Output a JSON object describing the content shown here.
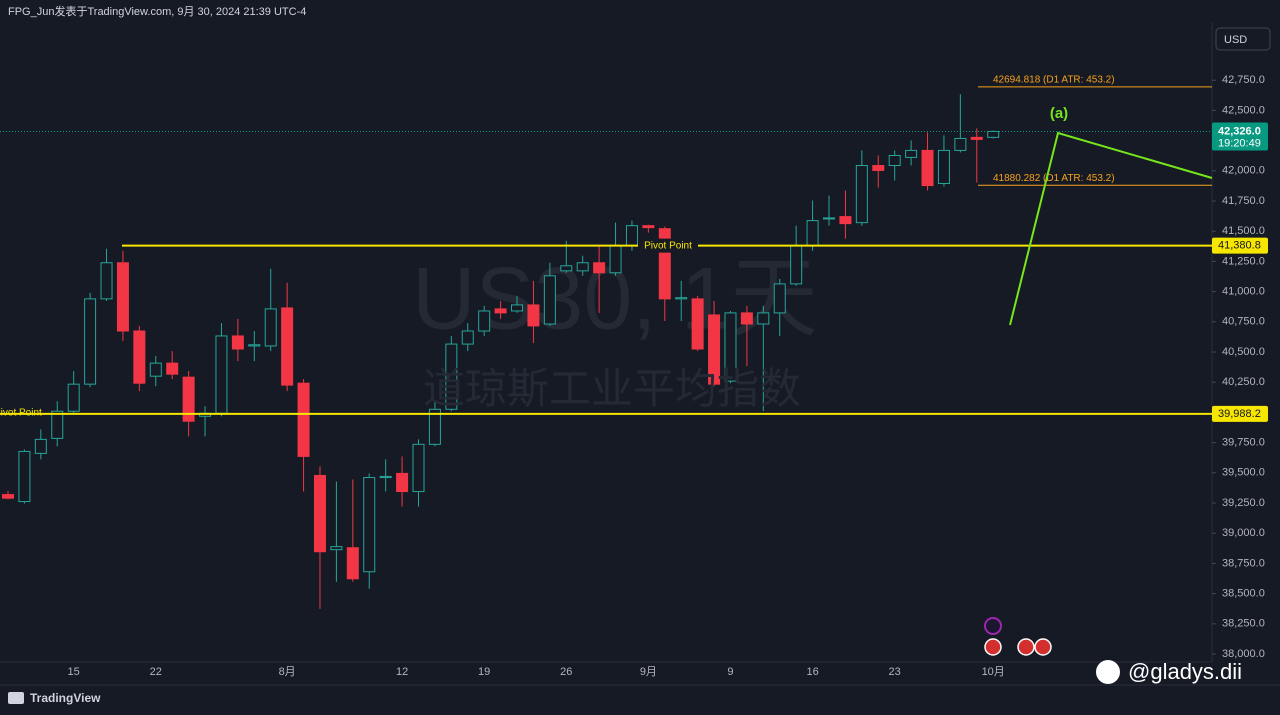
{
  "header": "FPG_Jun发表于TradingView.com, 9月 30, 2024 21:39 UTC-4",
  "currency": "USD",
  "logo": "TradingView",
  "credit": "@gladys.dii",
  "chart_data": {
    "type": "candlestick",
    "watermark": [
      "US30, 1天",
      "道琼斯工业平均指数"
    ],
    "categories": [
      null,
      null,
      null,
      null,
      "15",
      null,
      null,
      null,
      null,
      "22",
      null,
      null,
      null,
      null,
      null,
      null,
      null,
      "8月",
      null,
      null,
      null,
      null,
      null,
      null,
      "12",
      null,
      null,
      null,
      null,
      "19",
      null,
      null,
      null,
      null,
      "26",
      null,
      null,
      null,
      null,
      "9月",
      null,
      null,
      null,
      null,
      "9",
      null,
      null,
      null,
      null,
      "16",
      null,
      null,
      null,
      null,
      "23",
      null,
      null,
      null,
      null,
      null,
      "10月"
    ],
    "open": [
      39320,
      39262,
      39661,
      39785,
      40010,
      40234,
      40940,
      41239,
      40674,
      40300,
      40408,
      40292,
      39968,
      39993,
      40633,
      40550,
      40550,
      40865,
      40242,
      39478,
      38864,
      38880,
      38681,
      39461,
      39495,
      39345,
      39736,
      40026,
      40566,
      40674,
      40857,
      40840,
      40890,
      40732,
      41172,
      41172,
      41239,
      41156,
      41380,
      41546,
      41521,
      40940,
      40940,
      40807,
      40259,
      40824,
      40732,
      40824,
      41064,
      41380,
      41604,
      41621,
      41571,
      42044,
      42044,
      42111,
      42169,
      41895,
      42169,
      42277,
      42277
    ],
    "high": [
      39350,
      39694,
      39860,
      40093,
      40342,
      40990,
      41355,
      41338,
      40716,
      40466,
      40508,
      40342,
      40051,
      40740,
      40774,
      40674,
      41189,
      41073,
      40276,
      39553,
      39428,
      39445,
      39495,
      39611,
      39636,
      39777,
      40093,
      40633,
      40740,
      40882,
      40923,
      40965,
      41089,
      41239,
      41421,
      41297,
      41380,
      41571,
      41588,
      41554,
      41538,
      41089,
      40965,
      40923,
      40840,
      40882,
      40882,
      41106,
      41546,
      41754,
      41795,
      41837,
      42169,
      42127,
      42169,
      42252,
      42318,
      42293,
      42634,
      42352,
      42335
    ],
    "low": [
      39280,
      39246,
      39611,
      39719,
      39993,
      40209,
      40923,
      40591,
      40176,
      40217,
      40276,
      39802,
      39802,
      39968,
      40425,
      40425,
      40508,
      40176,
      39345,
      38374,
      38598,
      38598,
      38540,
      39345,
      39221,
      39221,
      39719,
      40010,
      40508,
      40633,
      40774,
      40824,
      40574,
      40716,
      41156,
      41131,
      40824,
      41131,
      41338,
      41488,
      40757,
      40757,
      40508,
      40217,
      40242,
      40383,
      40010,
      40633,
      41048,
      41338,
      41546,
      41438,
      41546,
      41861,
      41920,
      42044,
      41837,
      41870,
      42152,
      41903,
      42268
    ],
    "close": [
      39290,
      39677,
      39777,
      40010,
      40234,
      40940,
      41239,
      40674,
      40242,
      40408,
      40317,
      39927,
      39993,
      40633,
      40525,
      40560,
      40857,
      40226,
      39636,
      38847,
      38889,
      38623,
      39461,
      39470,
      39345,
      39736,
      40026,
      40566,
      40674,
      40840,
      40824,
      40890,
      40716,
      41131,
      41214,
      41239,
      41156,
      41380,
      41546,
      41530,
      40940,
      40950,
      40525,
      40234,
      40824,
      40732,
      40824,
      41064,
      41380,
      41588,
      41610,
      41563,
      42044,
      42003,
      42127,
      42169,
      41878,
      42169,
      42268,
      42260,
      42326
    ],
    "up_color": "#26a69a",
    "down_color": "#f23645",
    "ylim": [
      37934,
      43232
    ],
    "yticks": [
      {
        "value": 38000,
        "label": "38,000.0"
      },
      {
        "value": 38250,
        "label": "38,250.0"
      },
      {
        "value": 38500,
        "label": "38,500.0"
      },
      {
        "value": 38750,
        "label": "38,750.0"
      },
      {
        "value": 39000,
        "label": "39,000.0"
      },
      {
        "value": 39250,
        "label": "39,250.0"
      },
      {
        "value": 39500,
        "label": "39,500.0"
      },
      {
        "value": 39750,
        "label": "39,750.0"
      },
      {
        "value": 40000,
        "label": "40,000.0"
      },
      {
        "value": 40250,
        "label": "40,250.0"
      },
      {
        "value": 40500,
        "label": "40,500.0"
      },
      {
        "value": 40750,
        "label": "40,750.0"
      },
      {
        "value": 41000,
        "label": "41,000.0"
      },
      {
        "value": 41250,
        "label": "41,250.0"
      },
      {
        "value": 41500,
        "label": "41,500.0"
      },
      {
        "value": 41750,
        "label": "41,750.0"
      },
      {
        "value": 42000,
        "label": "42,000.0"
      },
      {
        "value": 42250,
        "label": "42,250.0"
      },
      {
        "value": 42500,
        "label": "42,500.0"
      },
      {
        "value": 42750,
        "label": "42,750.0"
      }
    ],
    "pivots": [
      {
        "name": "Pivot Point",
        "value": 41380.8,
        "value_label": "41,380.8"
      },
      {
        "name": "Pivot Point",
        "value": 39988.2,
        "value_label": "39,988.2"
      }
    ],
    "atr_lines": [
      {
        "label": "42694.818 (D1 ATR: 453.2)",
        "value": 42694.818
      },
      {
        "label": "41880.282 (D1 ATR: 453.2)",
        "value": 41880.282
      }
    ],
    "last_price": {
      "value": 42326.0,
      "value_label": "42,326.0",
      "countdown": "19:20:49"
    },
    "wave_label": "(a)"
  }
}
